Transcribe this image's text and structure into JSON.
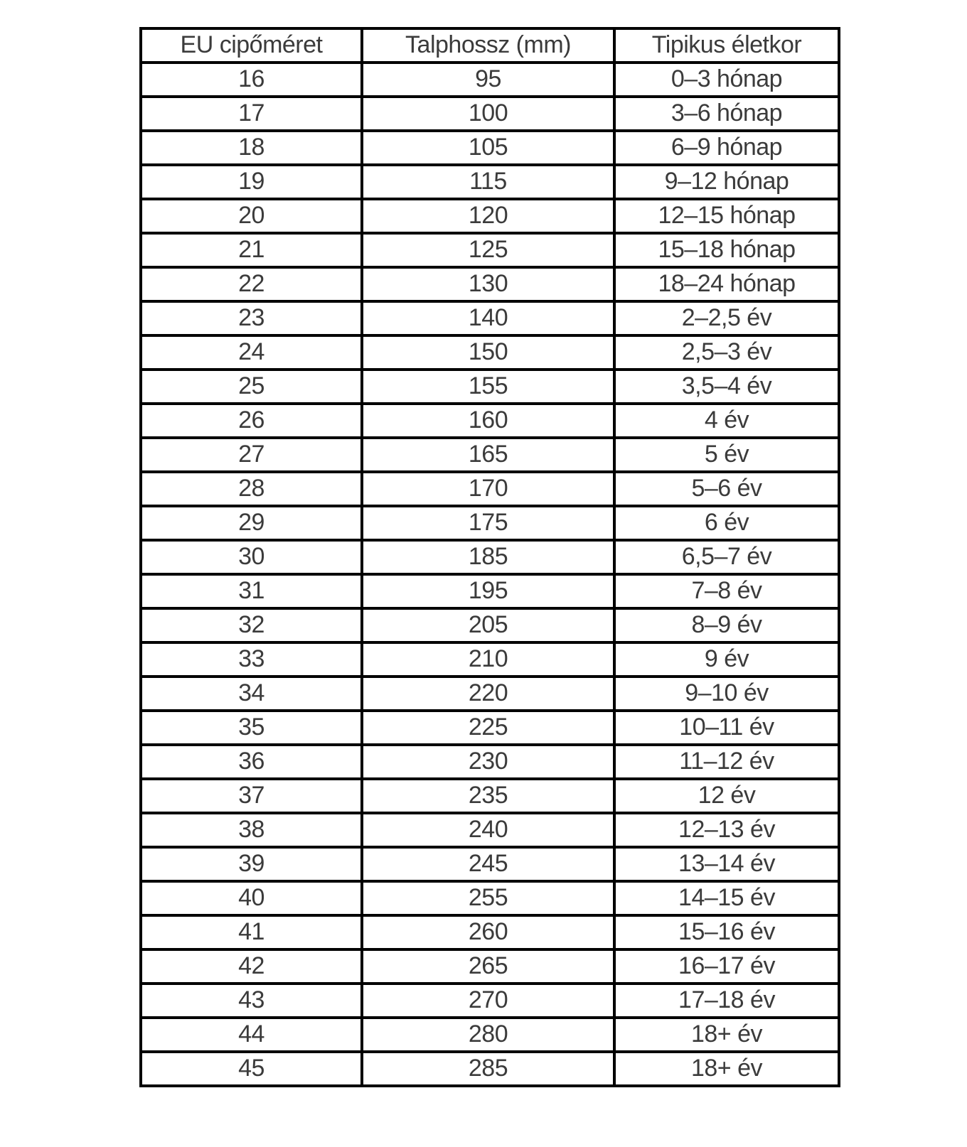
{
  "page": {
    "background_color": "#ffffff",
    "border_color": "#000000",
    "text_color": "#3b3b3b"
  },
  "table": {
    "columns": [
      "EU cipőméret",
      "Talphossz (mm)",
      "Tipikus életkor"
    ],
    "rows": [
      [
        "16",
        "95",
        "0–3 hónap"
      ],
      [
        "17",
        "100",
        "3–6 hónap"
      ],
      [
        "18",
        "105",
        "6–9 hónap"
      ],
      [
        "19",
        "115",
        "9–12 hónap"
      ],
      [
        "20",
        "120",
        "12–15 hónap"
      ],
      [
        "21",
        "125",
        "15–18 hónap"
      ],
      [
        "22",
        "130",
        "18–24 hónap"
      ],
      [
        "23",
        "140",
        "2–2,5 év"
      ],
      [
        "24",
        "150",
        "2,5–3 év"
      ],
      [
        "25",
        "155",
        "3,5–4 év"
      ],
      [
        "26",
        "160",
        "4 év"
      ],
      [
        "27",
        "165",
        "5 év"
      ],
      [
        "28",
        "170",
        "5–6 év"
      ],
      [
        "29",
        "175",
        "6 év"
      ],
      [
        "30",
        "185",
        "6,5–7 év"
      ],
      [
        "31",
        "195",
        "7–8 év"
      ],
      [
        "32",
        "205",
        "8–9 év"
      ],
      [
        "33",
        "210",
        "9 év"
      ],
      [
        "34",
        "220",
        "9–10 év"
      ],
      [
        "35",
        "225",
        "10–11 év"
      ],
      [
        "36",
        "230",
        "11–12 év"
      ],
      [
        "37",
        "235",
        "12 év"
      ],
      [
        "38",
        "240",
        "12–13 év"
      ],
      [
        "39",
        "245",
        "13–14 év"
      ],
      [
        "40",
        "255",
        "14–15 év"
      ],
      [
        "41",
        "260",
        "15–16 év"
      ],
      [
        "42",
        "265",
        "16–17 év"
      ],
      [
        "43",
        "270",
        "17–18 év"
      ],
      [
        "44",
        "280",
        "18+ év"
      ],
      [
        "45",
        "285",
        "18+ év"
      ]
    ]
  },
  "chart_data": {
    "type": "table",
    "title": "",
    "columns": [
      "EU cipőméret",
      "Talphossz (mm)",
      "Tipikus életkor"
    ],
    "rows": [
      [
        "16",
        "95",
        "0–3 hónap"
      ],
      [
        "17",
        "100",
        "3–6 hónap"
      ],
      [
        "18",
        "105",
        "6–9 hónap"
      ],
      [
        "19",
        "115",
        "9–12 hónap"
      ],
      [
        "20",
        "120",
        "12–15 hónap"
      ],
      [
        "21",
        "125",
        "15–18 hónap"
      ],
      [
        "22",
        "130",
        "18–24 hónap"
      ],
      [
        "23",
        "140",
        "2–2,5 év"
      ],
      [
        "24",
        "150",
        "2,5–3 év"
      ],
      [
        "25",
        "155",
        "3,5–4 év"
      ],
      [
        "26",
        "160",
        "4 év"
      ],
      [
        "27",
        "165",
        "5 év"
      ],
      [
        "28",
        "170",
        "5–6 év"
      ],
      [
        "29",
        "175",
        "6 év"
      ],
      [
        "30",
        "185",
        "6,5–7 év"
      ],
      [
        "31",
        "195",
        "7–8 év"
      ],
      [
        "32",
        "205",
        "8–9 év"
      ],
      [
        "33",
        "210",
        "9 év"
      ],
      [
        "34",
        "220",
        "9–10 év"
      ],
      [
        "35",
        "225",
        "10–11 év"
      ],
      [
        "36",
        "230",
        "11–12 év"
      ],
      [
        "37",
        "235",
        "12 év"
      ],
      [
        "38",
        "240",
        "12–13 év"
      ],
      [
        "39",
        "245",
        "13–14 év"
      ],
      [
        "40",
        "255",
        "14–15 év"
      ],
      [
        "41",
        "260",
        "15–16 év"
      ],
      [
        "42",
        "265",
        "16–17 év"
      ],
      [
        "43",
        "270",
        "17–18 év"
      ],
      [
        "44",
        "280",
        "18+ év"
      ],
      [
        "45",
        "285",
        "18+ év"
      ]
    ]
  }
}
